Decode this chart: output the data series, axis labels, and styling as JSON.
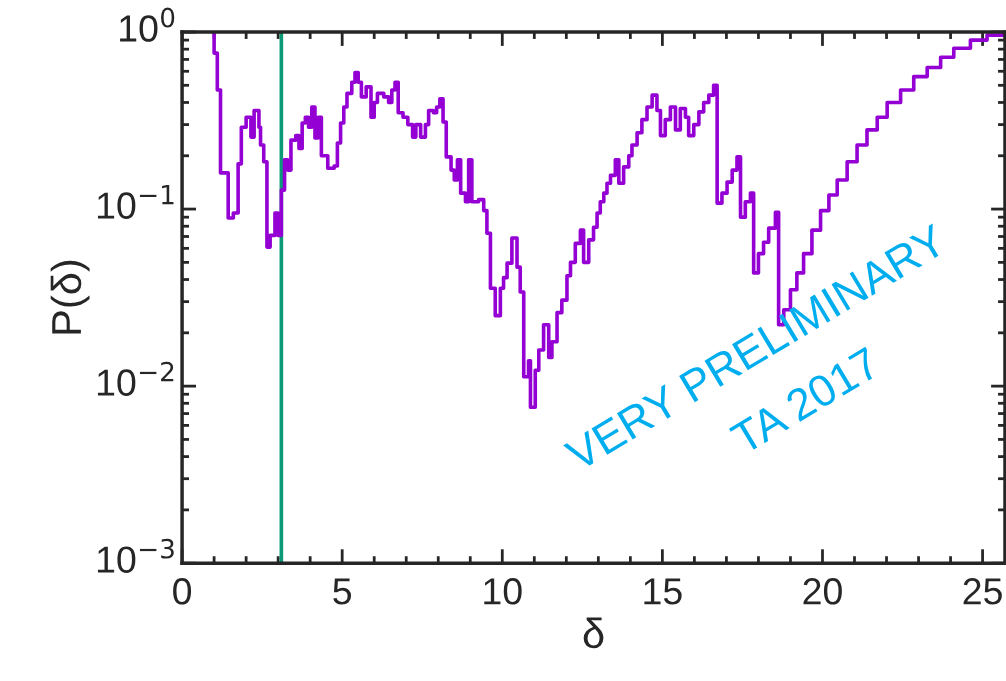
{
  "chart_data": {
    "type": "step",
    "xlabel": "δ",
    "ylabel": "P(δ)",
    "log": "y",
    "xlim": [
      0,
      25.7
    ],
    "xticks": [
      0,
      5,
      10,
      15,
      20,
      25
    ],
    "ylim": [
      0.001,
      1
    ],
    "yticks": [
      {
        "value": 0.001,
        "label": "10$^{−3}$"
      },
      {
        "value": 0.01,
        "label": "10$^{−2}$"
      },
      {
        "value": 0.1,
        "label": "10$^{−1}$"
      },
      {
        "value": 1,
        "label": "10$^{0}$"
      }
    ],
    "grid": false,
    "legend": false,
    "marker": "none",
    "line_style": "solid",
    "ref_lines": [
      {
        "axis": "x",
        "value": 3.1,
        "color": "#0a9a78"
      }
    ],
    "annotations": [
      "VERY PRELIMINARY",
      "TA 2017"
    ],
    "series": [
      {
        "color": "#9400d3",
        "x": [
          0.95,
          1.0,
          1.1,
          1.2,
          1.44,
          1.6,
          1.75,
          1.85,
          2.0,
          2.15,
          2.25,
          2.4,
          2.45,
          2.55,
          2.65,
          2.75,
          2.9,
          3.0,
          3.1,
          3.2,
          3.3,
          3.4,
          3.55,
          3.65,
          3.75,
          3.85,
          3.95,
          4.05,
          4.15,
          4.25,
          4.35,
          4.55,
          4.75,
          4.85,
          4.95,
          5.05,
          5.15,
          5.3,
          5.4,
          5.5,
          5.6,
          5.75,
          5.9,
          6.0,
          6.1,
          6.3,
          6.45,
          6.55,
          6.65,
          6.75,
          6.9,
          7.05,
          7.2,
          7.3,
          7.45,
          7.6,
          7.7,
          7.85,
          7.95,
          8.05,
          8.15,
          8.25,
          8.4,
          8.5,
          8.6,
          8.7,
          8.85,
          8.95,
          9.05,
          9.26,
          9.42,
          9.52,
          9.63,
          9.78,
          9.94,
          10.04,
          10.15,
          10.3,
          10.46,
          10.56,
          10.67,
          10.82,
          10.88,
          11.03,
          11.14,
          11.29,
          11.45,
          11.55,
          11.71,
          11.86,
          12.02,
          12.13,
          12.28,
          12.44,
          12.54,
          12.7,
          12.85,
          12.96,
          13.06,
          13.17,
          13.27,
          13.38,
          13.53,
          13.64,
          13.79,
          13.95,
          14.05,
          14.21,
          14.36,
          14.52,
          14.68,
          14.83,
          14.94,
          15.09,
          15.25,
          15.41,
          15.56,
          15.72,
          15.82,
          15.98,
          16.14,
          16.29,
          16.45,
          16.6,
          16.71,
          16.86,
          17.02,
          17.18,
          17.33,
          17.44,
          17.59,
          17.75,
          17.85,
          18.0,
          18.16,
          18.32,
          18.53,
          18.63,
          18.79,
          19.0,
          19.2,
          19.41,
          19.67,
          19.94,
          20.2,
          20.46,
          20.77,
          21.08,
          21.39,
          21.71,
          22.02,
          22.44,
          22.85,
          23.27,
          23.69,
          24.1,
          24.62,
          25.14,
          25.66
        ],
        "values": [
          1,
          0.76,
          0.47,
          0.16,
          0.089,
          0.095,
          0.18,
          0.29,
          0.33,
          0.255,
          0.36,
          0.29,
          0.23,
          0.185,
          0.061,
          0.071,
          0.095,
          0.071,
          0.128,
          0.19,
          0.166,
          0.245,
          0.26,
          0.22,
          0.306,
          0.33,
          0.29,
          0.377,
          0.252,
          0.33,
          0.2,
          0.17,
          0.175,
          0.236,
          0.306,
          0.377,
          0.45,
          0.52,
          0.59,
          0.52,
          0.43,
          0.49,
          0.33,
          0.4,
          0.45,
          0.43,
          0.4,
          0.47,
          0.52,
          0.35,
          0.33,
          0.3,
          0.255,
          0.3,
          0.255,
          0.3,
          0.36,
          0.35,
          0.377,
          0.42,
          0.31,
          0.197,
          0.166,
          0.146,
          0.19,
          0.123,
          0.11,
          0.19,
          0.11,
          0.113,
          0.098,
          0.073,
          0.0357,
          0.025,
          0.0357,
          0.041,
          0.0495,
          0.0686,
          0.047,
          0.034,
          0.0113,
          0.0139,
          0.0076,
          0.0123,
          0.016,
          0.0222,
          0.0145,
          0.0178,
          0.026,
          0.0306,
          0.042,
          0.05,
          0.064,
          0.076,
          0.05,
          0.067,
          0.079,
          0.095,
          0.11,
          0.123,
          0.14,
          0.155,
          0.19,
          0.14,
          0.173,
          0.2,
          0.23,
          0.27,
          0.32,
          0.377,
          0.44,
          0.36,
          0.26,
          0.32,
          0.377,
          0.28,
          0.37,
          0.33,
          0.26,
          0.3,
          0.354,
          0.4,
          0.44,
          0.5,
          0.108,
          0.123,
          0.142,
          0.166,
          0.197,
          0.09,
          0.11,
          0.123,
          0.0436,
          0.056,
          0.065,
          0.078,
          0.096,
          0.0222,
          0.027,
          0.035,
          0.0436,
          0.056,
          0.076,
          0.098,
          0.12,
          0.146,
          0.185,
          0.23,
          0.28,
          0.33,
          0.4,
          0.47,
          0.56,
          0.63,
          0.72,
          0.81,
          0.9,
          0.96,
          0.98
        ]
      }
    ]
  }
}
